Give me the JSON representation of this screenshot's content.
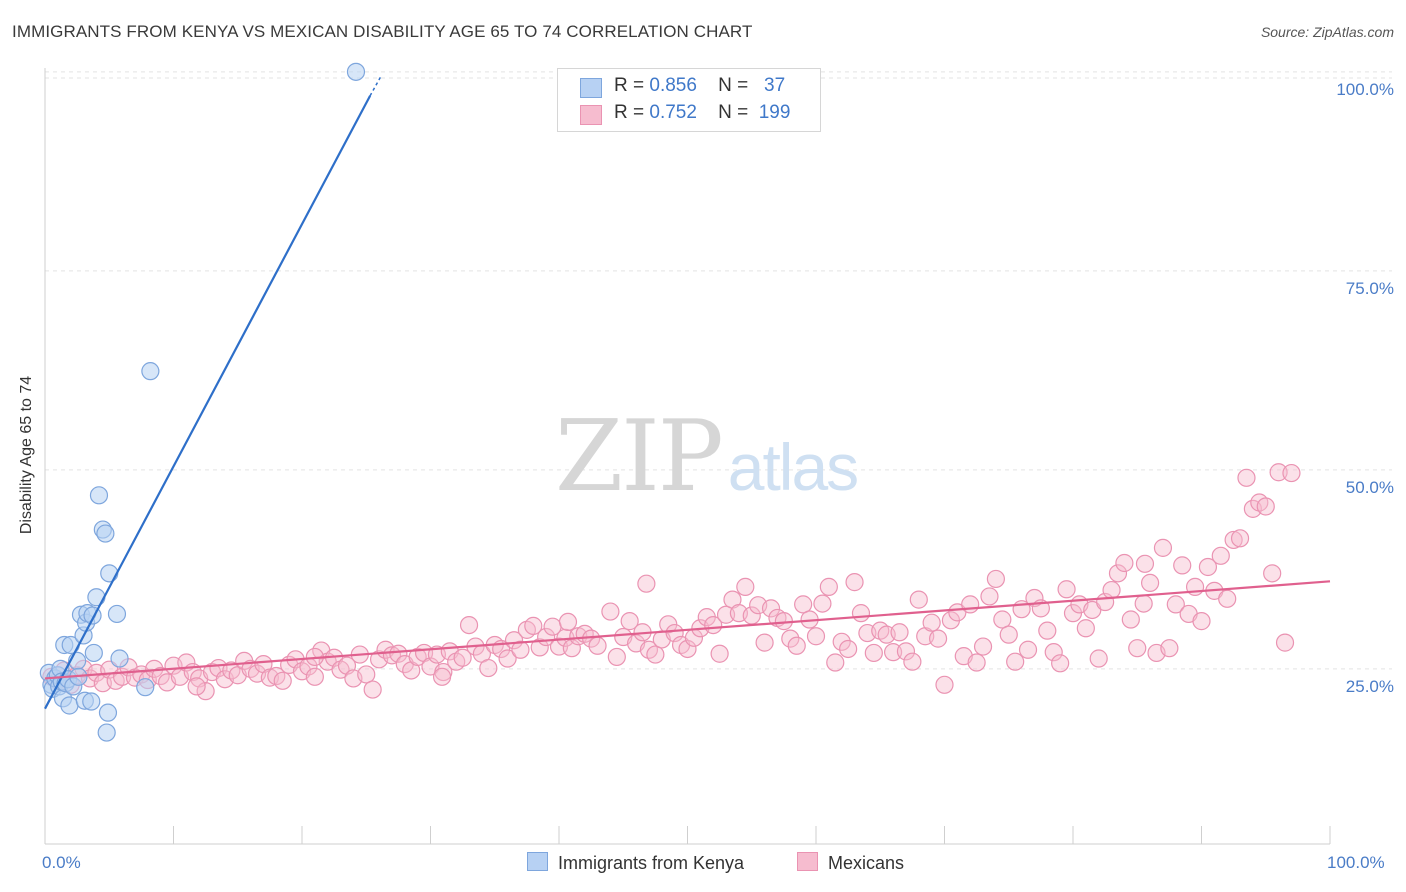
{
  "title": "IMMIGRANTS FROM KENYA VS MEXICAN DISABILITY AGE 65 TO 74 CORRELATION CHART",
  "source": "Source: ZipAtlas.com",
  "watermark": {
    "zip": "ZIP",
    "atlas": "atlas"
  },
  "legend": {
    "kenya": {
      "r_label": "R =",
      "r_value": "0.856",
      "n_label": "N =",
      "n_value": "37"
    },
    "mexicans": {
      "r_label": "R =",
      "r_value": "0.752",
      "n_label": "N =",
      "n_value": "199"
    }
  },
  "bottom_legend": {
    "kenya": "Immigrants from Kenya",
    "mexicans": "Mexicans"
  },
  "colors": {
    "kenya_fill": "#b7d1f3",
    "kenya_stroke": "#7ea6dd",
    "kenya_line": "#2e6fc9",
    "mex_fill": "#f6bccf",
    "mex_stroke": "#ea93b2",
    "mex_line": "#e0608e",
    "grid": "#e3e3e3",
    "tick_text": "#4a7cc7"
  },
  "chart_data": {
    "type": "scatter",
    "title": "IMMIGRANTS FROM KENYA VS MEXICAN DISABILITY AGE 65 TO 74 CORRELATION CHART",
    "xlabel": "",
    "ylabel": "Disability Age 65 to 74",
    "xlim": [
      0,
      100
    ],
    "ylim": [
      3,
      104
    ],
    "x_ticks": [
      "0.0%",
      "100.0%"
    ],
    "y_ticks": [
      {
        "value": 25,
        "label": "25.0%"
      },
      {
        "value": 50,
        "label": "50.0%"
      },
      {
        "value": 75,
        "label": "75.0%"
      },
      {
        "value": 100,
        "label": "100.0%"
      }
    ],
    "grid": true,
    "legend_position": "top-center",
    "series": [
      {
        "name": "Immigrants from Kenya",
        "r": 0.856,
        "n": 37,
        "trend": {
          "x": [
            0,
            25.3
          ],
          "y": [
            20.0,
            97.0
          ]
        },
        "trend_dashed": {
          "x": [
            25.3,
            26.2
          ],
          "y": [
            97.0,
            99.6
          ]
        },
        "points": [
          [
            0.3,
            24.5
          ],
          [
            0.5,
            23.0
          ],
          [
            0.6,
            22.5
          ],
          [
            0.8,
            23.8
          ],
          [
            1.0,
            24.2
          ],
          [
            1.1,
            22.8
          ],
          [
            1.2,
            25.0
          ],
          [
            1.3,
            23.4
          ],
          [
            1.4,
            21.3
          ],
          [
            1.5,
            28.0
          ],
          [
            1.6,
            23.2
          ],
          [
            1.8,
            23.7
          ],
          [
            1.9,
            20.4
          ],
          [
            2.0,
            28.0
          ],
          [
            2.2,
            22.8
          ],
          [
            2.5,
            26.0
          ],
          [
            2.6,
            24.0
          ],
          [
            2.8,
            31.8
          ],
          [
            3.0,
            29.2
          ],
          [
            3.1,
            21.0
          ],
          [
            3.2,
            30.8
          ],
          [
            3.3,
            32.0
          ],
          [
            3.6,
            20.9
          ],
          [
            3.7,
            31.7
          ],
          [
            3.8,
            27.0
          ],
          [
            4.0,
            34.0
          ],
          [
            4.2,
            46.8
          ],
          [
            4.5,
            42.5
          ],
          [
            4.7,
            42.0
          ],
          [
            4.8,
            17.0
          ],
          [
            4.9,
            19.5
          ],
          [
            5.0,
            37.0
          ],
          [
            5.6,
            31.9
          ],
          [
            5.8,
            26.3
          ],
          [
            7.8,
            22.7
          ],
          [
            8.2,
            62.4
          ],
          [
            24.2,
            100.0
          ]
        ]
      },
      {
        "name": "Mexicans",
        "r": 0.752,
        "n": 199,
        "trend": {
          "x": [
            0,
            100
          ],
          "y": [
            23.8,
            36.0
          ]
        },
        "points": [
          [
            0.5,
            24.0
          ],
          [
            1.0,
            23.5
          ],
          [
            1.5,
            24.8
          ],
          [
            2.0,
            23.0
          ],
          [
            2.5,
            24.2
          ],
          [
            3.0,
            25.0
          ],
          [
            3.5,
            23.8
          ],
          [
            4.0,
            24.5
          ],
          [
            4.5,
            23.2
          ],
          [
            5.0,
            24.9
          ],
          [
            5.5,
            23.5
          ],
          [
            6.0,
            24.0
          ],
          [
            6.5,
            25.2
          ],
          [
            7.0,
            23.9
          ],
          [
            7.5,
            24.3
          ],
          [
            8.0,
            23.6
          ],
          [
            8.5,
            25.0
          ],
          [
            9.0,
            24.1
          ],
          [
            9.5,
            23.3
          ],
          [
            10.0,
            25.4
          ],
          [
            10.5,
            24.0
          ],
          [
            11.0,
            25.8
          ],
          [
            11.5,
            24.6
          ],
          [
            12.0,
            23.8
          ],
          [
            12.5,
            22.2
          ],
          [
            13.0,
            24.6
          ],
          [
            13.5,
            25.1
          ],
          [
            14.0,
            23.7
          ],
          [
            14.5,
            24.8
          ],
          [
            15.0,
            24.2
          ],
          [
            15.5,
            26.0
          ],
          [
            16.0,
            25.0
          ],
          [
            16.5,
            24.4
          ],
          [
            17.0,
            25.6
          ],
          [
            17.5,
            23.9
          ],
          [
            18.0,
            24.1
          ],
          [
            18.5,
            23.5
          ],
          [
            19.0,
            25.5
          ],
          [
            19.5,
            26.2
          ],
          [
            20.0,
            24.7
          ],
          [
            20.5,
            25.3
          ],
          [
            21.0,
            24.0
          ],
          [
            21.5,
            27.3
          ],
          [
            22.0,
            25.9
          ],
          [
            22.5,
            26.4
          ],
          [
            23.0,
            24.9
          ],
          [
            23.5,
            25.4
          ],
          [
            24.0,
            23.8
          ],
          [
            24.5,
            26.8
          ],
          [
            25.0,
            24.3
          ],
          [
            25.5,
            22.4
          ],
          [
            26.0,
            26.2
          ],
          [
            26.5,
            27.4
          ],
          [
            27.0,
            26.7
          ],
          [
            27.5,
            26.9
          ],
          [
            28.0,
            25.6
          ],
          [
            28.5,
            24.8
          ],
          [
            29.0,
            26.5
          ],
          [
            29.5,
            27.0
          ],
          [
            30.0,
            25.3
          ],
          [
            30.5,
            26.8
          ],
          [
            31.0,
            24.6
          ],
          [
            31.5,
            27.2
          ],
          [
            32.0,
            25.9
          ],
          [
            32.5,
            26.4
          ],
          [
            33.0,
            30.5
          ],
          [
            33.5,
            27.8
          ],
          [
            34.0,
            26.9
          ],
          [
            34.5,
            25.1
          ],
          [
            35.0,
            28.0
          ],
          [
            35.5,
            27.5
          ],
          [
            36.0,
            26.3
          ],
          [
            36.5,
            28.6
          ],
          [
            37.0,
            27.4
          ],
          [
            37.5,
            29.9
          ],
          [
            38.0,
            30.4
          ],
          [
            38.5,
            27.7
          ],
          [
            39.0,
            29.0
          ],
          [
            39.5,
            30.3
          ],
          [
            40.0,
            27.8
          ],
          [
            40.5,
            28.9
          ],
          [
            41.0,
            27.6
          ],
          [
            41.5,
            29.1
          ],
          [
            42.0,
            29.4
          ],
          [
            42.5,
            28.8
          ],
          [
            43.0,
            27.9
          ],
          [
            44.0,
            32.2
          ],
          [
            44.5,
            26.5
          ],
          [
            45.0,
            29.0
          ],
          [
            45.5,
            31.0
          ],
          [
            46.0,
            28.2
          ],
          [
            46.5,
            29.6
          ],
          [
            47.0,
            27.4
          ],
          [
            47.5,
            26.8
          ],
          [
            48.0,
            28.7
          ],
          [
            48.5,
            30.6
          ],
          [
            49.0,
            29.5
          ],
          [
            49.5,
            28.0
          ],
          [
            50.0,
            27.5
          ],
          [
            50.5,
            28.9
          ],
          [
            51.0,
            30.1
          ],
          [
            51.5,
            31.5
          ],
          [
            52.0,
            30.5
          ],
          [
            52.5,
            26.9
          ],
          [
            53.0,
            31.8
          ],
          [
            53.5,
            33.7
          ],
          [
            54.0,
            32.0
          ],
          [
            54.5,
            35.3
          ],
          [
            55.0,
            31.7
          ],
          [
            55.5,
            33.0
          ],
          [
            56.0,
            28.3
          ],
          [
            56.5,
            32.6
          ],
          [
            57.0,
            31.4
          ],
          [
            57.5,
            31.0
          ],
          [
            58.0,
            28.8
          ],
          [
            58.5,
            27.9
          ],
          [
            59.0,
            33.1
          ],
          [
            59.5,
            31.2
          ],
          [
            60.0,
            29.1
          ],
          [
            60.5,
            33.2
          ],
          [
            61.0,
            35.3
          ],
          [
            61.5,
            25.8
          ],
          [
            62.0,
            28.4
          ],
          [
            62.5,
            27.5
          ],
          [
            63.0,
            35.9
          ],
          [
            63.5,
            32.0
          ],
          [
            64.0,
            29.5
          ],
          [
            64.5,
            27.0
          ],
          [
            65.0,
            29.8
          ],
          [
            65.5,
            29.3
          ],
          [
            66.0,
            27.1
          ],
          [
            66.5,
            29.6
          ],
          [
            67.0,
            27.2
          ],
          [
            67.5,
            25.9
          ],
          [
            68.0,
            33.7
          ],
          [
            68.5,
            29.1
          ],
          [
            69.0,
            30.8
          ],
          [
            69.5,
            28.8
          ],
          [
            70.0,
            23.0
          ],
          [
            70.5,
            31.1
          ],
          [
            71.0,
            32.1
          ],
          [
            71.5,
            26.6
          ],
          [
            72.0,
            33.1
          ],
          [
            72.5,
            25.8
          ],
          [
            73.0,
            27.8
          ],
          [
            73.5,
            34.1
          ],
          [
            74.0,
            36.3
          ],
          [
            74.5,
            31.2
          ],
          [
            75.0,
            29.3
          ],
          [
            75.5,
            25.9
          ],
          [
            76.0,
            32.5
          ],
          [
            76.5,
            27.4
          ],
          [
            77.0,
            33.9
          ],
          [
            77.5,
            32.6
          ],
          [
            78.0,
            29.8
          ],
          [
            78.5,
            27.1
          ],
          [
            79.0,
            25.7
          ],
          [
            79.5,
            35.0
          ],
          [
            80.0,
            32.0
          ],
          [
            80.5,
            33.1
          ],
          [
            81.0,
            30.1
          ],
          [
            81.5,
            32.4
          ],
          [
            82.0,
            26.3
          ],
          [
            82.5,
            33.4
          ],
          [
            83.0,
            34.9
          ],
          [
            83.5,
            37.0
          ],
          [
            84.0,
            38.3
          ],
          [
            84.5,
            31.2
          ],
          [
            85.0,
            27.6
          ],
          [
            85.5,
            33.2
          ],
          [
            86.0,
            35.8
          ],
          [
            86.5,
            27.0
          ],
          [
            87.0,
            40.2
          ],
          [
            87.5,
            27.6
          ],
          [
            88.0,
            33.1
          ],
          [
            88.5,
            38.0
          ],
          [
            89.0,
            31.9
          ],
          [
            89.5,
            35.3
          ],
          [
            90.0,
            31.0
          ],
          [
            90.5,
            37.8
          ],
          [
            91.0,
            34.8
          ],
          [
            91.5,
            39.2
          ],
          [
            92.0,
            33.8
          ],
          [
            92.5,
            41.2
          ],
          [
            93.0,
            41.4
          ],
          [
            93.5,
            49.0
          ],
          [
            94.0,
            45.1
          ],
          [
            94.5,
            45.9
          ],
          [
            95.0,
            45.4
          ],
          [
            95.5,
            37.0
          ],
          [
            96.0,
            49.7
          ],
          [
            96.5,
            28.3
          ],
          [
            97.0,
            49.6
          ],
          [
            46.8,
            35.7
          ],
          [
            21.0,
            26.5
          ],
          [
            11.8,
            22.8
          ],
          [
            30.9,
            24.0
          ],
          [
            40.7,
            30.9
          ],
          [
            85.6,
            38.2
          ]
        ]
      }
    ]
  }
}
